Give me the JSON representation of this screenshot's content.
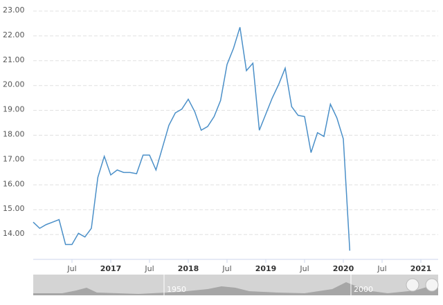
{
  "chart_data": {
    "type": "line",
    "x": [
      "2016-01",
      "2016-02",
      "2016-03",
      "2016-04",
      "2016-05",
      "2016-06",
      "2016-07",
      "2016-08",
      "2016-09",
      "2016-10",
      "2016-11",
      "2016-12",
      "2017-01",
      "2017-02",
      "2017-03",
      "2017-04",
      "2017-05",
      "2017-06",
      "2017-07",
      "2017-08",
      "2017-09",
      "2017-10",
      "2017-11",
      "2017-12",
      "2018-01",
      "2018-02",
      "2018-03",
      "2018-04",
      "2018-05",
      "2018-06",
      "2018-07",
      "2018-08",
      "2018-09",
      "2018-10",
      "2018-11",
      "2018-12",
      "2019-01",
      "2019-02",
      "2019-03",
      "2019-04",
      "2019-05",
      "2019-06",
      "2019-07",
      "2019-08",
      "2019-09",
      "2019-10",
      "2019-11",
      "2019-12",
      "2020-01",
      "2020-02"
    ],
    "series": [
      {
        "color": "#4a8fc8",
        "values": [
          14.5,
          14.25,
          14.4,
          14.5,
          14.6,
          13.6,
          13.6,
          14.05,
          13.9,
          14.25,
          16.3,
          17.15,
          16.4,
          16.6,
          16.5,
          16.5,
          16.45,
          17.2,
          17.2,
          16.6,
          17.5,
          18.4,
          18.9,
          19.05,
          19.45,
          18.95,
          18.2,
          18.35,
          18.75,
          19.4,
          20.85,
          21.5,
          22.35,
          20.6,
          20.9,
          18.2,
          18.85,
          19.5,
          20.05,
          20.7,
          19.15,
          18.8,
          18.75,
          17.3,
          18.1,
          17.95,
          19.25,
          18.7,
          17.85,
          13.35
        ]
      }
    ],
    "ylim": [
      13,
      23.4
    ],
    "yticks": [
      {
        "value": 14,
        "label": "14.00"
      },
      {
        "value": 15,
        "label": "15.00"
      },
      {
        "value": 16,
        "label": "16.00"
      },
      {
        "value": 17,
        "label": "17.00"
      },
      {
        "value": 18,
        "label": "18.00"
      },
      {
        "value": 19,
        "label": "19.00"
      },
      {
        "value": 20,
        "label": "20.00"
      },
      {
        "value": 21,
        "label": "21.00"
      },
      {
        "value": 22,
        "label": "22.00"
      },
      {
        "value": 23,
        "label": "23.00"
      }
    ],
    "xticks": [
      {
        "value": "2016-07",
        "label": "Jul"
      },
      {
        "value": "2017-01",
        "label": "2017"
      },
      {
        "value": "2017-07",
        "label": "Jul"
      },
      {
        "value": "2018-01",
        "label": "2018"
      },
      {
        "value": "2018-07",
        "label": "Jul"
      },
      {
        "value": "2019-01",
        "label": "2019"
      },
      {
        "value": "2019-07",
        "label": "Jul"
      },
      {
        "value": "2020-01",
        "label": "2020"
      },
      {
        "value": "2020-07",
        "label": "Jul"
      },
      {
        "value": "2021-01",
        "label": "2021"
      }
    ],
    "grid": true,
    "navigator": {
      "labels": [
        "1950",
        "2000"
      ]
    }
  }
}
